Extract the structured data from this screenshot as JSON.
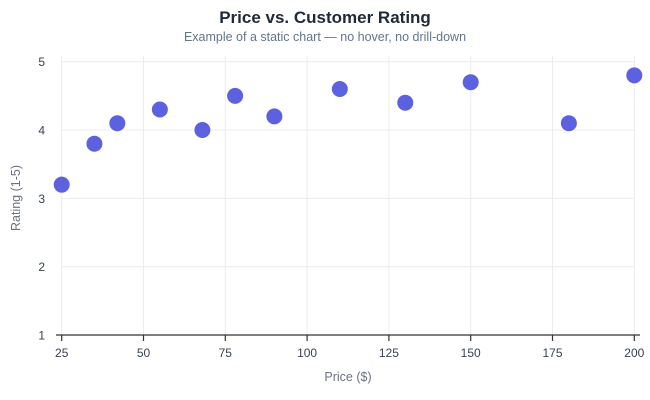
{
  "header": {
    "title": "Price vs. Customer Rating",
    "subtitle": "Example of a static chart — no hover, no drill-down"
  },
  "chart_data": {
    "type": "scatter",
    "title": "Price vs. Customer Rating",
    "subtitle": "Example of a static chart — no hover, no drill-down",
    "xlabel": "Price ($)",
    "ylabel": "Rating (1-5)",
    "xlim": [
      25,
      200
    ],
    "ylim": [
      1,
      5
    ],
    "x_ticks": [
      25,
      50,
      75,
      100,
      125,
      150,
      175,
      200
    ],
    "y_ticks": [
      1,
      2,
      3,
      4,
      5
    ],
    "grid": true,
    "legend": "none",
    "points": [
      {
        "x": 25,
        "y": 3.2
      },
      {
        "x": 35,
        "y": 3.8
      },
      {
        "x": 42,
        "y": 4.1
      },
      {
        "x": 55,
        "y": 4.3
      },
      {
        "x": 68,
        "y": 4.0
      },
      {
        "x": 78,
        "y": 4.5
      },
      {
        "x": 90,
        "y": 4.2
      },
      {
        "x": 110,
        "y": 4.6
      },
      {
        "x": 130,
        "y": 4.4
      },
      {
        "x": 150,
        "y": 4.7
      },
      {
        "x": 180,
        "y": 4.1
      },
      {
        "x": 200,
        "y": 4.8
      }
    ],
    "colors": {
      "point": "#5c61e0",
      "grid": "#ececec",
      "axis_line": "#333333",
      "tick_label": "#374151",
      "axis_name": "#6b7280",
      "title": "#1f2937",
      "subtitle": "#64748b",
      "background": "#ffffff"
    }
  }
}
